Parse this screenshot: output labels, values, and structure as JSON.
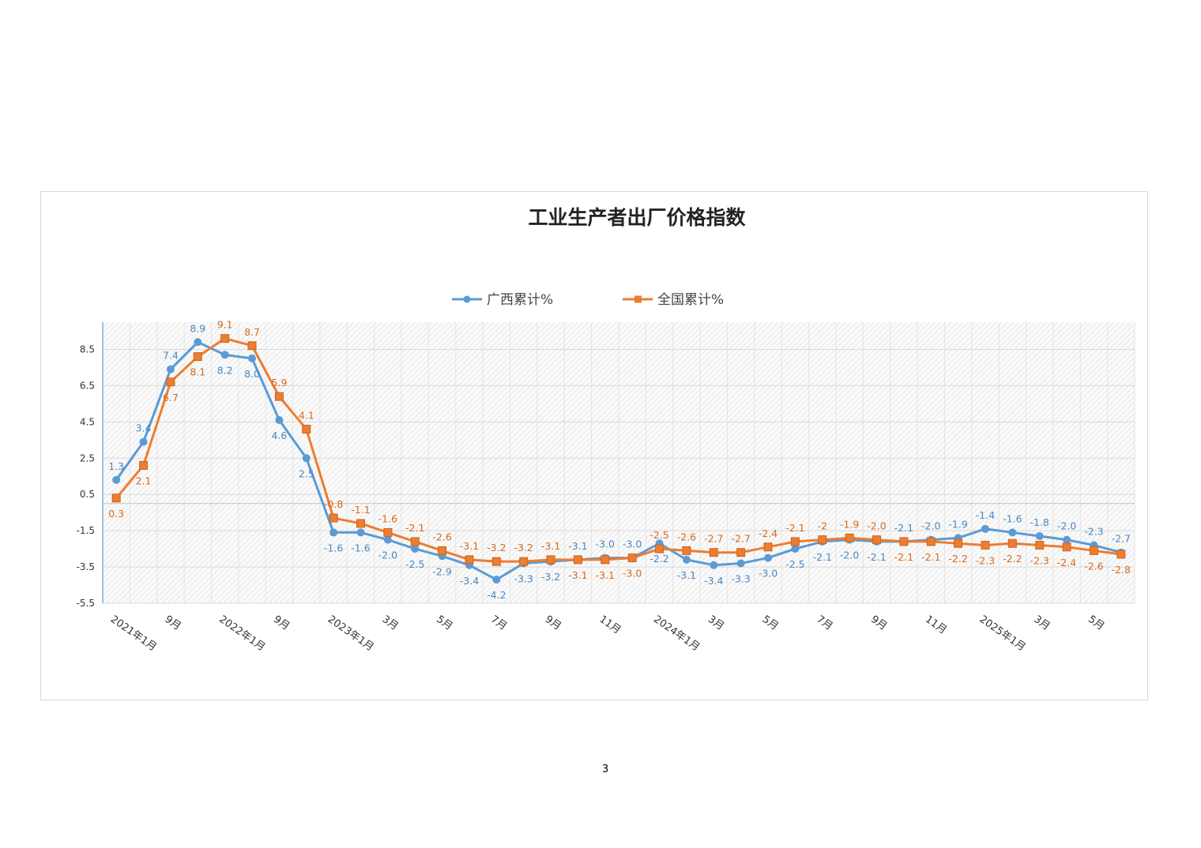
{
  "page_number": "3",
  "chart_data": {
    "type": "line",
    "title": "工业生产者出厂价格指数",
    "xlabel": "",
    "ylabel": "",
    "ylim": [
      -5.5,
      10
    ],
    "yticks": [
      8.5,
      6.5,
      4.5,
      2.5,
      0.5,
      -1.5,
      -3.5,
      -5.5
    ],
    "ytick_labels": [
      "8.5",
      "6.5",
      "4.5",
      "2.5",
      "0.5",
      "-1.5",
      "-3.5",
      "-5.5"
    ],
    "grid": true,
    "legend_position": "top-center",
    "categories": [
      "2021年1月",
      "",
      "9月",
      "",
      "2022年1月",
      "",
      "9月",
      "",
      "2023年1月",
      "",
      "3月",
      "",
      "5月",
      "",
      "7月",
      "",
      "9月",
      "",
      "11月",
      "",
      "2024年1月",
      "",
      "3月",
      "",
      "5月",
      "",
      "7月",
      "",
      "9月",
      "",
      "11月",
      "",
      "2025年1月",
      "",
      "3月",
      "",
      "5月",
      ""
    ],
    "series": [
      {
        "name": "广西累计%",
        "color": "#5b9bd5",
        "marker": "circle",
        "values": [
          1.3,
          3.4,
          7.4,
          8.9,
          8.2,
          8.0,
          4.6,
          2.5,
          -1.6,
          -1.6,
          -2.0,
          -2.5,
          -2.9,
          -3.4,
          -4.2,
          -3.3,
          -3.2,
          -3.1,
          -3.0,
          -3.0,
          -2.2,
          -3.1,
          -3.4,
          -3.3,
          -3.0,
          -2.5,
          -2.1,
          -2.0,
          -2.1,
          -2.1,
          -2.0,
          -1.9,
          -1.4,
          -1.6,
          -1.8,
          -2.0,
          -2.3,
          -2.7
        ],
        "labels": [
          "1.3",
          "3.4",
          "7.4",
          "8.9",
          "8.2",
          "8.0",
          "4.6",
          "2.5",
          "-1.6",
          "-1.6",
          "-2.0",
          "-2.5",
          "-2.9",
          "-3.4",
          "-4.2",
          "-3.3",
          "-3.2",
          "-3.1",
          "-3.0",
          "-3.0",
          "-2.2",
          "-3.1",
          "-3.4",
          "-3.3",
          "-3.0",
          "-2.5",
          "-2.1",
          "-2.0",
          "-2.1",
          "-2.1",
          "-2.0",
          "-1.9",
          "-1.4",
          "-1.6",
          "-1.8",
          "-2.0",
          "-2.3",
          "-2.7"
        ]
      },
      {
        "name": "全国累计%",
        "color": "#ed7d31",
        "marker": "square",
        "values": [
          0.3,
          2.1,
          6.7,
          8.1,
          9.1,
          8.7,
          5.9,
          4.1,
          -0.8,
          -1.1,
          -1.6,
          -2.1,
          -2.6,
          -3.1,
          -3.2,
          -3.2,
          -3.1,
          -3.1,
          -3.1,
          -3.0,
          -2.5,
          -2.6,
          -2.7,
          -2.7,
          -2.4,
          -2.1,
          -2,
          -1.9,
          -2.0,
          -2.1,
          -2.1,
          -2.2,
          -2.3,
          -2.2,
          -2.3,
          -2.4,
          -2.6,
          -2.8
        ],
        "labels": [
          "0.3",
          "2.1",
          "6.7",
          "8.1",
          "9.1",
          "8.7",
          "5.9",
          "4.1",
          "-0.8",
          "-1.1",
          "-1.6",
          "-2.1",
          "-2.6",
          "-3.1",
          "-3.2",
          "-3.2",
          "-3.1",
          "-3.1",
          "-3.1",
          "-3.0",
          "-2.5",
          "-2.6",
          "-2.7",
          "-2.7",
          "-2.4",
          "-2.1",
          "-2",
          "-1.9",
          "-2.0",
          "-2.1",
          "-2.1",
          "-2.2",
          "-2.3",
          "-2.2",
          "-2.3",
          "-2.4",
          "-2.6",
          "-2.8"
        ]
      }
    ]
  }
}
